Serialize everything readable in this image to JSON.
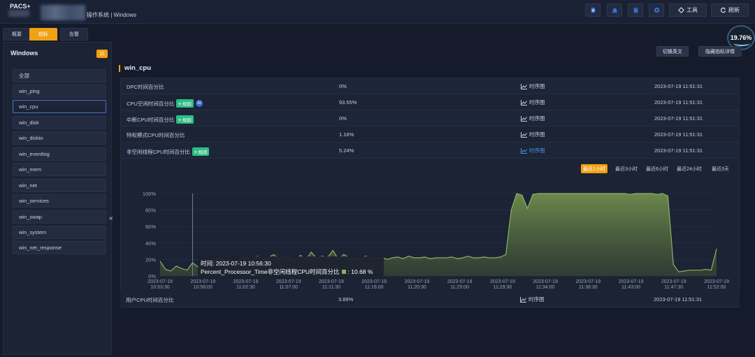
{
  "header": {
    "brand": "PACS+",
    "crumb": "操作系统 | Windows",
    "tools_label": "工具",
    "refresh_label": "刷新"
  },
  "tabs": [
    {
      "label": "概要"
    },
    {
      "label": "指标"
    },
    {
      "label": "告警"
    }
  ],
  "gauge": {
    "value": "19.76%"
  },
  "sidebar": {
    "title": "Windows",
    "count": "11",
    "items": [
      {
        "label": "全部"
      },
      {
        "label": "win_ping"
      },
      {
        "label": "win_cpu"
      },
      {
        "label": "win_disk"
      },
      {
        "label": "win_diskio"
      },
      {
        "label": "win_eventlog"
      },
      {
        "label": "win_mem"
      },
      {
        "label": "win_net"
      },
      {
        "label": "win_services"
      },
      {
        "label": "win_swap"
      },
      {
        "label": "win_system"
      },
      {
        "label": "win_net_response"
      }
    ]
  },
  "main": {
    "switch_en": "切换英文",
    "hide_detail": "隐藏指标详情",
    "section": "win_cpu",
    "rule_tag": "规则",
    "ai_tag": "AI",
    "timeseries": "时序图",
    "metrics": [
      {
        "name": "DPC时间百分比",
        "value": "0%",
        "ts": "2023-07-19 11:51:31"
      },
      {
        "name": "CPU空闲时间百分比",
        "value": "93.55%",
        "ts": "2023-07-19 11:51:31"
      },
      {
        "name": "中断CPU时间百分比",
        "value": "0%",
        "ts": "2023-07-19 11:51:31"
      },
      {
        "name": "特权模式CPU时间百分比",
        "value": "1.16%",
        "ts": "2023-07-19 11:51:31"
      },
      {
        "name": "非空闲线程CPU时间百分比",
        "value": "5.24%",
        "ts": "2023-07-19 11:51:31"
      }
    ],
    "last_metric": {
      "name": "用户CPU时间百分比",
      "value": "3.89%",
      "ts": "2023-07-19 11:51:31"
    }
  },
  "ranges": [
    {
      "label": "最近1小时"
    },
    {
      "label": "最近3小时"
    },
    {
      "label": "最近6小时"
    },
    {
      "label": "最近24小时"
    },
    {
      "label": "最近3天"
    }
  ],
  "tooltip": {
    "time_label": "时间:",
    "time": "2023-07-19 10:56:30",
    "series": "Percent_Processor_Time非空闲线程CPU时间百分比",
    "value": "10.68 %"
  },
  "colors": {
    "accent": "#f1a114",
    "series": "#8db064",
    "rule": "#2dbd86"
  },
  "chart_data": {
    "type": "area",
    "ylim": [
      0,
      100
    ],
    "yticks": [
      "100%",
      "80%",
      "60%",
      "40%",
      "20%",
      "0%"
    ],
    "xticks": [
      [
        "2023-07-19",
        "10:53:30"
      ],
      [
        "2023-07-19",
        "10:58:00"
      ],
      [
        "2023-07-19",
        "11:02:30"
      ],
      [
        "2023-07-19",
        "11:07:00"
      ],
      [
        "2023-07-19",
        "11:11:30"
      ],
      [
        "2023-07-19",
        "11:16:00"
      ],
      [
        "2023-07-19",
        "11:20:30"
      ],
      [
        "2023-07-19",
        "11:25:00"
      ],
      [
        "2023-07-19",
        "11:29:30"
      ],
      [
        "2023-07-19",
        "11:34:00"
      ],
      [
        "2023-07-19",
        "11:38:30"
      ],
      [
        "2023-07-19",
        "11:43:00"
      ],
      [
        "2023-07-19",
        "11:47:30"
      ],
      [
        "2023-07-19",
        "11:52:00"
      ]
    ],
    "series": [
      {
        "values": [
          18,
          8,
          6,
          12,
          9,
          7,
          16,
          11,
          14,
          8,
          20,
          22,
          18,
          19,
          17,
          21,
          23,
          19,
          24,
          20,
          22,
          26,
          21,
          23,
          22,
          19,
          25,
          20,
          29,
          21,
          24,
          22,
          31,
          20,
          26,
          22,
          20,
          21,
          24,
          22,
          21,
          23,
          20,
          22,
          23,
          21,
          24,
          22,
          22,
          23,
          21,
          22,
          22,
          22,
          23,
          21,
          22,
          24,
          22,
          22,
          23,
          22,
          22,
          23,
          26,
          80,
          100,
          98,
          82,
          99,
          100,
          100,
          100,
          100,
          100,
          100,
          100,
          100,
          100,
          100,
          100,
          100,
          100,
          100,
          100,
          100,
          100,
          99,
          100,
          100,
          100,
          100,
          99,
          100,
          97,
          14,
          5,
          6,
          7,
          7,
          7,
          8,
          7,
          33
        ]
      }
    ]
  }
}
